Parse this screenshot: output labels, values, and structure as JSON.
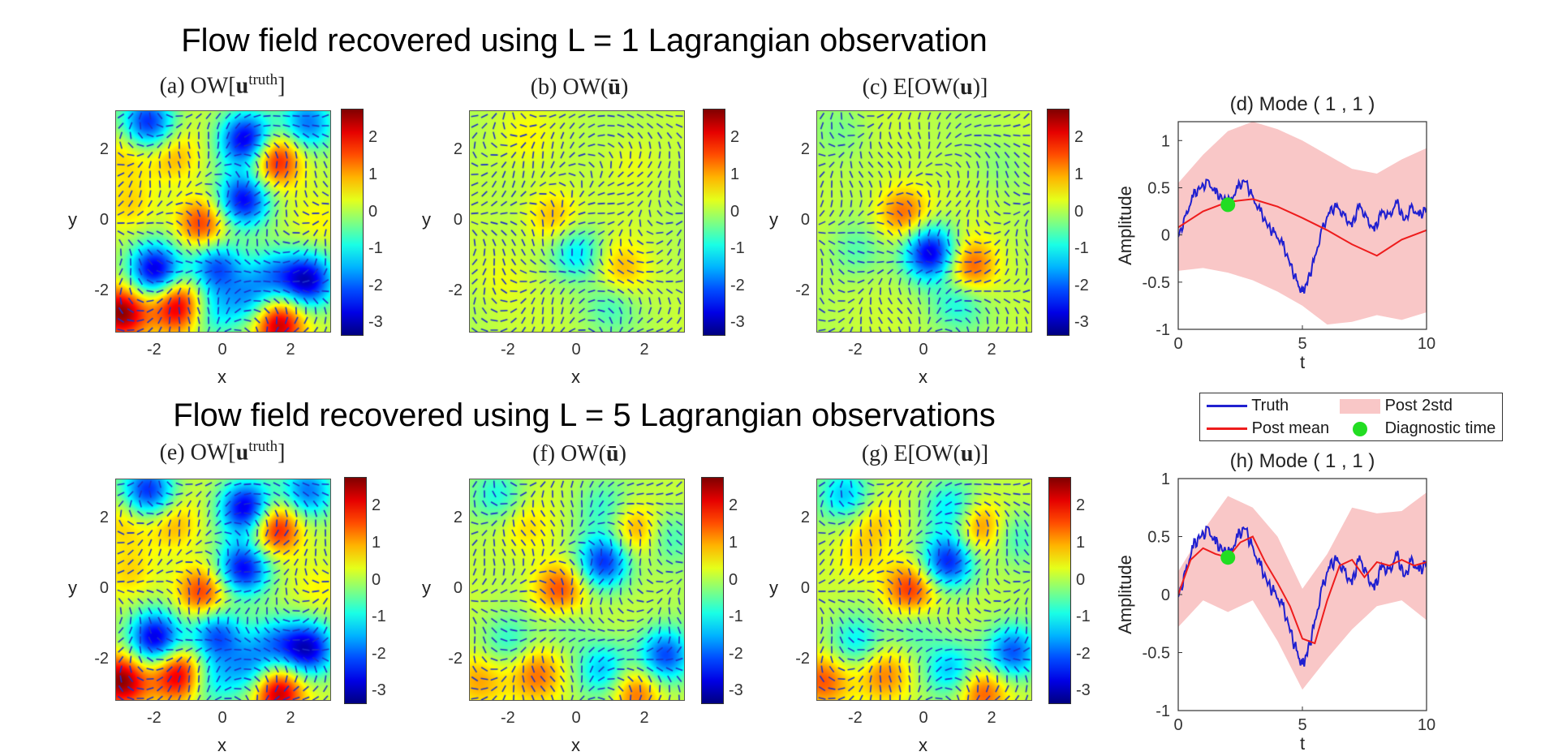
{
  "suptitles": {
    "top": "Flow field recovered using L = 1 Lagrangian observation",
    "bottom": "Flow field recovered using L = 5 Lagrangian observations"
  },
  "panel_titles": {
    "a": {
      "pre": "(a) OW[",
      "bold": "u",
      "sup": "truth",
      "post": "]"
    },
    "b": {
      "pre": "(b) OW(",
      "bold": "ū",
      "post": ")"
    },
    "c": {
      "pre": "(c) E[OW(",
      "bold": "u",
      "post": ")]"
    },
    "d": "(d) Mode ( 1 , 1 )",
    "e": {
      "pre": "(e) OW[",
      "bold": "u",
      "sup": "truth",
      "post": "]"
    },
    "f": {
      "pre": "(f) OW(",
      "bold": "ū",
      "post": ")"
    },
    "g": {
      "pre": "(g) E[OW(",
      "bold": "u",
      "post": ")]"
    },
    "h": "(h) Mode ( 1 , 1 )"
  },
  "heatmap_axes": {
    "xlabel": "x",
    "ylabel": "y",
    "xticks": [
      "-2",
      "0",
      "2"
    ],
    "yticks": [
      "2",
      "0",
      "-2"
    ],
    "colorbar_ticks": [
      "2",
      "1",
      "0",
      "-1",
      "-2",
      "-3"
    ]
  },
  "colors": {
    "truth": "#2020d0",
    "post_mean": "#ee1c1c",
    "post_2std": "#f9c7c7",
    "diagnostic": "#22dd22",
    "quiver": "#1c2fc8"
  },
  "legend": {
    "truth": "Truth",
    "post_mean": "Post mean",
    "post_2std": "Post 2std",
    "diagnostic": "Diagnostic time"
  },
  "chart_data": [
    {
      "type": "heatmap",
      "panel": "a",
      "title": "(a) OW[u^truth]",
      "xlabel": "x",
      "ylabel": "y",
      "xlim": [
        -3.14,
        3.14
      ],
      "ylim": [
        -3.14,
        3.14
      ],
      "clim": [
        -3.3,
        2.8
      ],
      "blobs": [
        [
          -2.2,
          2.8,
          -2.6
        ],
        [
          0.7,
          2.3,
          -3.1
        ],
        [
          2.5,
          2.8,
          -2.0
        ],
        [
          1.5,
          1.8,
          2.3
        ],
        [
          -1.5,
          1.9,
          0.9
        ],
        [
          -2.9,
          2.0,
          0.8
        ],
        [
          0.6,
          0.6,
          -2.8
        ],
        [
          -0.6,
          -0.1,
          1.8
        ],
        [
          -2.0,
          -1.4,
          -3.0
        ],
        [
          -0.2,
          -1.3,
          -2.2
        ],
        [
          1.5,
          -1.5,
          -1.4
        ],
        [
          2.5,
          -1.7,
          -2.9
        ],
        [
          -3.0,
          -2.6,
          2.7
        ],
        [
          -1.3,
          -2.4,
          2.4
        ],
        [
          1.6,
          -2.9,
          2.6
        ],
        [
          0.8,
          -2.3,
          -1.5
        ],
        [
          -0.4,
          -2.6,
          -1.2
        ],
        [
          2.9,
          0.0,
          0.5
        ],
        [
          -2.7,
          0.5,
          0.6
        ]
      ]
    },
    {
      "type": "heatmap",
      "panel": "b",
      "title": "(b) OW(ū)",
      "xlabel": "x",
      "ylabel": "y",
      "xlim": [
        -3.14,
        3.14
      ],
      "ylim": [
        -3.14,
        3.14
      ],
      "clim": [
        -3.3,
        2.8
      ],
      "blobs": [
        [
          -0.7,
          0.1,
          0.9
        ],
        [
          0.0,
          -0.9,
          -1.3
        ],
        [
          1.3,
          -1.4,
          0.9
        ],
        [
          1.0,
          -2.4,
          -0.7
        ],
        [
          -1.5,
          2.4,
          0.35
        ],
        [
          1.6,
          1.7,
          0.3
        ],
        [
          -2.2,
          -1.6,
          0.3
        ]
      ]
    },
    {
      "type": "heatmap",
      "panel": "c",
      "title": "(c) E[OW(u)]",
      "xlabel": "x",
      "ylabel": "y",
      "xlim": [
        -3.14,
        3.14
      ],
      "ylim": [
        -3.14,
        3.14
      ],
      "clim": [
        -3.3,
        2.8
      ],
      "blobs": [
        [
          -0.6,
          0.2,
          1.4
        ],
        [
          0.2,
          -0.9,
          -3.0
        ],
        [
          1.3,
          -1.3,
          1.6
        ],
        [
          1.0,
          -2.3,
          -1.0
        ],
        [
          -2.0,
          -0.8,
          -0.6
        ],
        [
          2.3,
          1.6,
          -0.3
        ],
        [
          -2.4,
          2.6,
          -0.4
        ]
      ]
    },
    {
      "type": "line",
      "panel": "d",
      "title": "(d) Mode ( 1 , 1 )",
      "xlabel": "t",
      "ylabel": "Amplitude",
      "xlim": [
        0,
        10
      ],
      "ylim": [
        -1,
        1.2
      ],
      "xticks": [
        0,
        5,
        10
      ],
      "yticks": [
        1,
        0.5,
        0,
        -0.5,
        -1
      ],
      "truth": {
        "t": [
          0,
          0.3,
          0.6,
          0.9,
          1.2,
          1.5,
          1.8,
          2.1,
          2.4,
          2.7,
          3.0,
          3.3,
          3.6,
          3.9,
          4.2,
          4.5,
          4.8,
          5.0,
          5.2,
          5.5,
          5.8,
          6.1,
          6.4,
          6.7,
          7.0,
          7.3,
          7.6,
          7.9,
          8.2,
          8.5,
          8.8,
          9.1,
          9.4,
          9.7,
          10.0
        ],
        "value": [
          -0.02,
          0.18,
          0.42,
          0.5,
          0.55,
          0.45,
          0.38,
          0.35,
          0.5,
          0.58,
          0.38,
          0.25,
          0.1,
          0.0,
          -0.1,
          -0.3,
          -0.52,
          -0.62,
          -0.5,
          -0.25,
          0.05,
          0.25,
          0.3,
          0.18,
          0.1,
          0.32,
          0.15,
          0.05,
          0.25,
          0.18,
          0.35,
          0.15,
          0.28,
          0.2,
          0.28
        ]
      },
      "post_mean": {
        "t": [
          0,
          1,
          2,
          3,
          4,
          5,
          6,
          7,
          8,
          9,
          10
        ],
        "value": [
          0.08,
          0.25,
          0.35,
          0.38,
          0.3,
          0.18,
          0.05,
          -0.1,
          -0.22,
          -0.05,
          0.05
        ]
      },
      "post_2std": {
        "t": [
          0,
          1,
          2,
          3,
          4,
          5,
          6,
          7,
          8,
          9,
          10
        ],
        "upper": [
          0.55,
          0.85,
          1.1,
          1.2,
          1.12,
          1.0,
          0.85,
          0.7,
          0.65,
          0.8,
          0.92
        ],
        "lower": [
          -0.38,
          -0.35,
          -0.4,
          -0.48,
          -0.6,
          -0.75,
          -0.95,
          -0.92,
          -0.85,
          -0.9,
          -0.82
        ]
      },
      "diagnostic_time": {
        "t": 2.0,
        "value": 0.32
      }
    },
    {
      "type": "heatmap",
      "panel": "e",
      "title": "(e) OW[u^truth]",
      "xlabel": "x",
      "ylabel": "y",
      "xlim": [
        -3.14,
        3.14
      ],
      "ylim": [
        -3.14,
        3.14
      ],
      "clim": [
        -3.3,
        2.8
      ],
      "blobs": [
        [
          -2.2,
          2.8,
          -2.6
        ],
        [
          0.7,
          2.3,
          -3.1
        ],
        [
          2.5,
          2.8,
          -2.0
        ],
        [
          1.5,
          1.8,
          2.3
        ],
        [
          -1.5,
          1.9,
          0.9
        ],
        [
          -2.9,
          2.0,
          0.8
        ],
        [
          0.6,
          0.6,
          -2.8
        ],
        [
          -0.6,
          -0.1,
          1.8
        ],
        [
          -2.0,
          -1.4,
          -3.0
        ],
        [
          -0.2,
          -1.3,
          -2.2
        ],
        [
          1.5,
          -1.5,
          -1.4
        ],
        [
          2.5,
          -1.7,
          -2.9
        ],
        [
          -3.0,
          -2.6,
          2.7
        ],
        [
          -1.3,
          -2.4,
          2.4
        ],
        [
          1.6,
          -2.9,
          2.6
        ],
        [
          0.8,
          -2.3,
          -1.5
        ],
        [
          -0.4,
          -2.6,
          -1.2
        ],
        [
          2.9,
          0.0,
          0.5
        ],
        [
          -2.7,
          0.5,
          0.6
        ]
      ]
    },
    {
      "type": "heatmap",
      "panel": "f",
      "title": "(f) OW(ū)",
      "xlabel": "x",
      "ylabel": "y",
      "xlim": [
        -3.14,
        3.14
      ],
      "ylim": [
        -3.14,
        3.14
      ],
      "clim": [
        -3.3,
        2.8
      ],
      "blobs": [
        [
          0.8,
          0.8,
          -2.5
        ],
        [
          -0.5,
          0.0,
          1.6
        ],
        [
          1.7,
          1.7,
          1.2
        ],
        [
          2.6,
          -1.9,
          -2.3
        ],
        [
          0.8,
          -2.3,
          -1.5
        ],
        [
          -1.2,
          -2.4,
          1.2
        ],
        [
          1.7,
          -2.9,
          1.5
        ],
        [
          -2.3,
          2.7,
          -1.0
        ],
        [
          0.8,
          2.3,
          -0.8
        ],
        [
          2.7,
          1.5,
          -0.8
        ],
        [
          -2.0,
          -1.5,
          -0.9
        ],
        [
          -0.3,
          -1.0,
          -0.5
        ],
        [
          -2.9,
          -2.6,
          1.0
        ],
        [
          -1.5,
          1.8,
          0.6
        ]
      ]
    },
    {
      "type": "heatmap",
      "panel": "g",
      "title": "(g) E[OW(u)]",
      "xlabel": "x",
      "ylabel": "y",
      "xlim": [
        -3.14,
        3.14
      ],
      "ylim": [
        -3.14,
        3.14
      ],
      "clim": [
        -3.3,
        2.8
      ],
      "blobs": [
        [
          0.7,
          0.8,
          -2.6
        ],
        [
          -0.4,
          0.0,
          1.8
        ],
        [
          1.6,
          1.8,
          1.4
        ],
        [
          2.6,
          -1.8,
          -2.2
        ],
        [
          0.8,
          -2.3,
          -1.5
        ],
        [
          -1.2,
          -2.4,
          1.1
        ],
        [
          1.7,
          -2.9,
          1.6
        ],
        [
          -2.3,
          2.7,
          -1.5
        ],
        [
          0.8,
          2.3,
          -1.3
        ],
        [
          2.7,
          1.5,
          -0.8
        ],
        [
          -2.0,
          -1.5,
          -1.2
        ],
        [
          -0.3,
          -1.1,
          -0.7
        ],
        [
          -3.0,
          -2.6,
          1.5
        ],
        [
          -1.5,
          1.9,
          0.7
        ],
        [
          -1.9,
          0.9,
          0.5
        ]
      ]
    },
    {
      "type": "line",
      "panel": "h",
      "title": "(h) Mode ( 1 , 1 )",
      "xlabel": "t",
      "ylabel": "Amplitude",
      "xlim": [
        0,
        10
      ],
      "ylim": [
        -1,
        1
      ],
      "xticks": [
        0,
        5,
        10
      ],
      "yticks": [
        1,
        0.5,
        0,
        -0.5,
        -1
      ],
      "truth": {
        "t": [
          0,
          0.3,
          0.6,
          0.9,
          1.2,
          1.5,
          1.8,
          2.1,
          2.4,
          2.7,
          3.0,
          3.3,
          3.6,
          3.9,
          4.2,
          4.5,
          4.8,
          5.0,
          5.2,
          5.5,
          5.8,
          6.1,
          6.4,
          6.7,
          7.0,
          7.3,
          7.6,
          7.9,
          8.2,
          8.5,
          8.8,
          9.1,
          9.4,
          9.7,
          10.0
        ],
        "value": [
          -0.02,
          0.18,
          0.42,
          0.5,
          0.55,
          0.45,
          0.38,
          0.35,
          0.5,
          0.58,
          0.38,
          0.25,
          0.1,
          0.0,
          -0.1,
          -0.3,
          -0.52,
          -0.62,
          -0.5,
          -0.25,
          0.05,
          0.25,
          0.3,
          0.18,
          0.1,
          0.32,
          0.15,
          0.05,
          0.25,
          0.18,
          0.35,
          0.15,
          0.28,
          0.2,
          0.28
        ]
      },
      "post_mean": {
        "t": [
          0,
          0.5,
          1,
          1.5,
          2,
          2.5,
          3,
          3.5,
          4,
          4.5,
          5,
          5.5,
          6,
          6.5,
          7,
          7.5,
          8,
          8.5,
          9,
          9.5,
          10
        ],
        "value": [
          0.0,
          0.3,
          0.4,
          0.35,
          0.32,
          0.45,
          0.5,
          0.28,
          0.1,
          -0.1,
          -0.38,
          -0.42,
          -0.05,
          0.25,
          0.3,
          0.15,
          0.28,
          0.25,
          0.3,
          0.25,
          0.28
        ]
      },
      "post_2std": {
        "t": [
          0,
          1,
          2,
          3,
          4,
          5,
          6,
          7,
          8,
          9,
          10
        ],
        "upper": [
          0.2,
          0.55,
          0.85,
          0.75,
          0.5,
          0.05,
          0.35,
          0.75,
          0.7,
          0.72,
          0.88
        ],
        "lower": [
          -0.28,
          -0.05,
          -0.15,
          -0.05,
          -0.4,
          -0.82,
          -0.55,
          -0.3,
          -0.1,
          -0.05,
          -0.22
        ]
      },
      "diagnostic_time": {
        "t": 2.0,
        "value": 0.32
      }
    }
  ]
}
